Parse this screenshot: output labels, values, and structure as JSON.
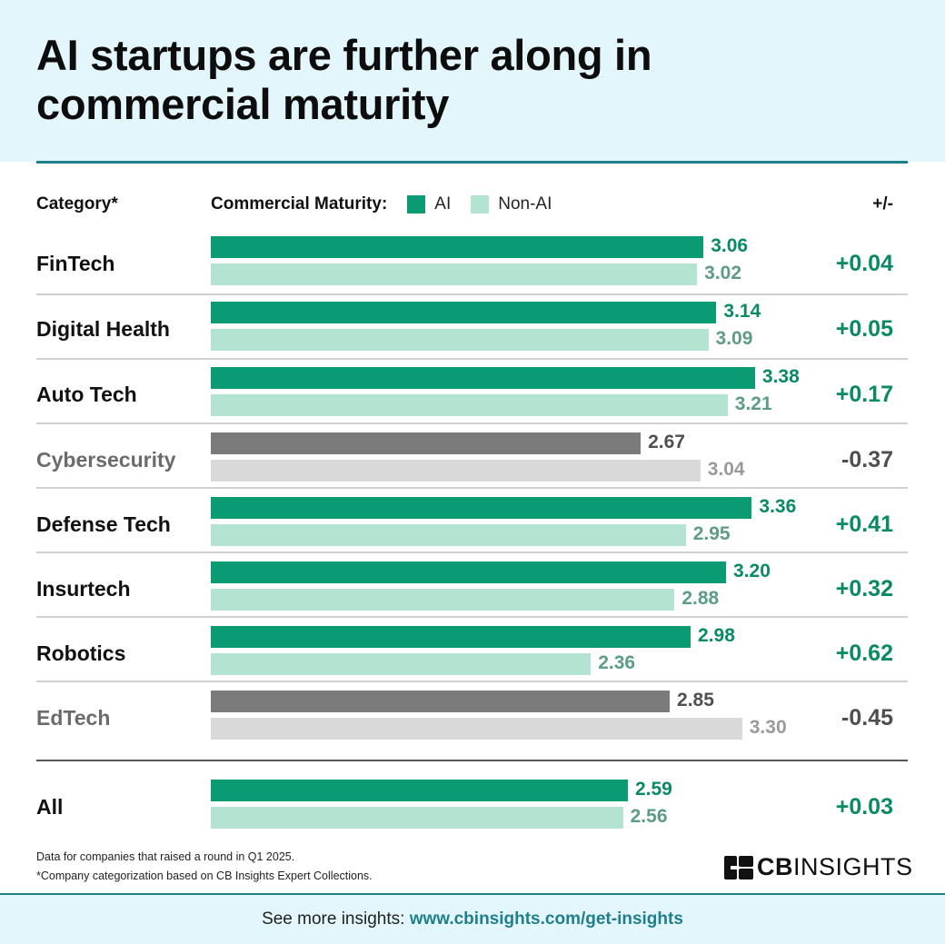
{
  "title": "AI startups are further along in commercial maturity",
  "header": {
    "category_label": "Category*",
    "legend_label": "Commercial Maturity:",
    "legend_ai": "AI",
    "legend_nonai": "Non-AI",
    "diff_label": "+/-"
  },
  "colors": {
    "ai": "#0a9b72",
    "nonai": "#b3e3d1",
    "ai_neg": "#7b7b7b",
    "nonai_neg": "#d9d9d9",
    "pos_text": "#0a8a64",
    "nonai_text": "#5d9c86",
    "neg_text": "#4f4f4f",
    "neg_light_text": "#9a9a9a",
    "neg_label": "#6b6b6b"
  },
  "chart_data": {
    "type": "bar",
    "orientation": "horizontal",
    "title": "AI startups are further along in commercial maturity",
    "xlabel": "Commercial Maturity",
    "categories": [
      "FinTech",
      "Digital Health",
      "Auto Tech",
      "Cybersecurity",
      "Defense Tech",
      "Insurtech",
      "Robotics",
      "EdTech",
      "All"
    ],
    "series": [
      {
        "name": "AI",
        "values": [
          3.06,
          3.14,
          3.38,
          2.67,
          3.36,
          3.2,
          2.98,
          2.85,
          2.59
        ]
      },
      {
        "name": "Non-AI",
        "values": [
          3.02,
          3.09,
          3.21,
          3.04,
          2.95,
          2.88,
          2.36,
          3.3,
          2.56
        ]
      }
    ],
    "labels_ai": [
      "3.06",
      "3.14",
      "3.38",
      "2.67",
      "3.36",
      "3.20",
      "2.98",
      "2.85",
      "2.59"
    ],
    "labels_nonai": [
      "3.02",
      "3.09",
      "3.21",
      "3.04",
      "2.95",
      "2.88",
      "2.36",
      "3.30",
      "2.56"
    ],
    "diffs": [
      "+0.04",
      "+0.05",
      "+0.17",
      "-0.37",
      "+0.41",
      "+0.32",
      "+0.62",
      "-0.45",
      "+0.03"
    ],
    "negative": [
      false,
      false,
      false,
      true,
      false,
      false,
      false,
      true,
      false
    ],
    "xlim": [
      0,
      4.2
    ],
    "legend": "top"
  },
  "footnotes": {
    "line1": "Data for companies that raised a round in Q1 2025.",
    "line2": "*Company categorization based on CB Insights Expert Collections."
  },
  "logo": {
    "bold": "CB",
    "light": "INSIGHTS"
  },
  "footer": {
    "prefix": "See more insights:",
    "link": "www.cbinsights.com/get-insights"
  }
}
